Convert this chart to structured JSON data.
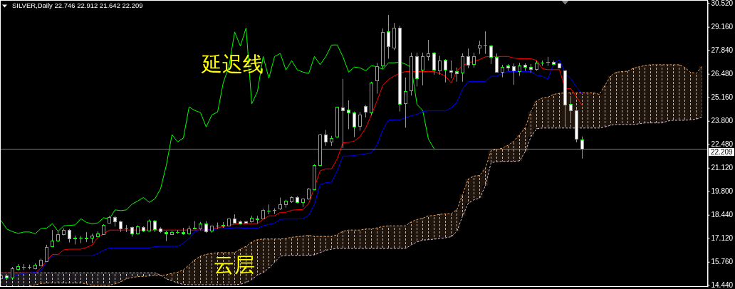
{
  "chart_data": {
    "type": "candlestick",
    "title": "SILVER,Daily 22.746 22.912 21.642 22.209",
    "categories": [
      null,
      null,
      null,
      null,
      null,
      null,
      null,
      null,
      null,
      null,
      null,
      null,
      null,
      null,
      null,
      null,
      null,
      null,
      null,
      null,
      null,
      null,
      null,
      null,
      null,
      null,
      null,
      null,
      null,
      null,
      null,
      null,
      null,
      null,
      null,
      null,
      null,
      null,
      null,
      null,
      null,
      null,
      null,
      null,
      null,
      null,
      null,
      null,
      null,
      null,
      null,
      null,
      null,
      null,
      null,
      null,
      null,
      null,
      null,
      null,
      null,
      null,
      null,
      null,
      null,
      null,
      null,
      null,
      null,
      null,
      null,
      null,
      null,
      null,
      null,
      null,
      null,
      null,
      null,
      null,
      null,
      null,
      null,
      null,
      null,
      null,
      null,
      null,
      null,
      null,
      null,
      null,
      null,
      null,
      null,
      null,
      null,
      null,
      null,
      null,
      null,
      null,
      null,
      null,
      null,
      null,
      null,
      null,
      null,
      null,
      null,
      null,
      null,
      null,
      null,
      null,
      null,
      null,
      null,
      null,
      null,
      null,
      null,
      null
    ],
    "ohlc": [
      [
        14.82,
        15.06,
        14.78,
        14.99
      ],
      [
        14.97,
        15.06,
        14.79,
        14.86
      ],
      [
        14.86,
        15.47,
        14.83,
        15.4
      ],
      [
        15.33,
        15.63,
        15.26,
        15.49
      ],
      [
        15.46,
        15.63,
        15.29,
        15.47
      ],
      [
        15.46,
        15.6,
        15.33,
        15.48
      ],
      [
        15.4,
        15.67,
        15.33,
        15.58
      ],
      [
        15.56,
        15.94,
        15.53,
        15.87
      ],
      [
        15.81,
        16.73,
        15.74,
        16.59
      ],
      [
        16.65,
        17.57,
        16.62,
        16.96
      ],
      [
        16.96,
        17.5,
        16.89,
        17.32
      ],
      [
        17.32,
        17.66,
        17.27,
        17.57
      ],
      [
        17.57,
        17.63,
        16.86,
        17.09
      ],
      [
        17.11,
        17.25,
        16.75,
        17.12
      ],
      [
        17.12,
        17.23,
        16.82,
        17.13
      ],
      [
        17.1,
        17.46,
        16.89,
        17.12
      ],
      [
        17.12,
        17.36,
        16.85,
        17.25
      ],
      [
        17.23,
        17.5,
        17.16,
        17.36
      ],
      [
        17.32,
        17.9,
        17.3,
        17.86
      ],
      [
        18.0,
        18.38,
        17.97,
        18.31
      ],
      [
        18.3,
        18.38,
        17.77,
        18.08
      ],
      [
        18.08,
        18.11,
        17.46,
        17.65
      ],
      [
        17.66,
        17.86,
        17.46,
        17.67
      ],
      [
        17.74,
        17.77,
        17.19,
        17.36
      ],
      [
        17.36,
        17.84,
        17.32,
        17.77
      ],
      [
        17.76,
        17.78,
        17.46,
        17.53
      ],
      [
        17.53,
        18.17,
        17.5,
        18.11
      ],
      [
        18.11,
        18.15,
        17.46,
        17.63
      ],
      [
        17.65,
        17.73,
        17.4,
        17.48
      ],
      [
        17.47,
        17.53,
        16.94,
        17.38
      ],
      [
        17.35,
        17.54,
        17.3,
        17.46
      ],
      [
        17.45,
        17.57,
        17.35,
        17.46
      ],
      [
        17.47,
        17.7,
        17.3,
        17.36
      ],
      [
        17.39,
        17.81,
        17.32,
        17.66
      ],
      [
        17.67,
        18.08,
        17.61,
        17.68
      ],
      [
        17.66,
        18.04,
        17.56,
        17.94
      ],
      [
        17.94,
        18.08,
        17.4,
        17.5
      ],
      [
        17.52,
        17.83,
        17.43,
        17.81
      ],
      [
        17.83,
        18.0,
        17.63,
        17.84
      ],
      [
        17.84,
        18.02,
        17.7,
        17.86
      ],
      [
        17.84,
        18.24,
        17.81,
        18.22
      ],
      [
        18.22,
        18.47,
        17.97,
        18.0
      ],
      [
        18.05,
        18.11,
        17.9,
        17.94
      ],
      [
        18.06,
        18.1,
        17.94,
        17.98
      ],
      [
        18.05,
        18.38,
        18.0,
        18.27
      ],
      [
        18.19,
        18.38,
        17.94,
        18.21
      ],
      [
        18.24,
        18.78,
        18.22,
        18.72
      ],
      [
        18.67,
        19.03,
        18.47,
        18.68
      ],
      [
        18.7,
        18.81,
        18.49,
        18.72
      ],
      [
        18.81,
        19.42,
        18.72,
        19.05
      ],
      [
        19.05,
        19.3,
        18.85,
        19.23
      ],
      [
        19.19,
        19.49,
        19.12,
        19.43
      ],
      [
        19.43,
        19.5,
        19.1,
        19.15
      ],
      [
        19.15,
        19.39,
        18.89,
        19.35
      ],
      [
        19.35,
        19.96,
        19.3,
        19.93
      ],
      [
        19.89,
        21.32,
        19.84,
        21.26
      ],
      [
        21.29,
        23.05,
        21.25,
        23.01
      ],
      [
        23.03,
        23.28,
        22.37,
        22.6
      ],
      [
        22.63,
        22.94,
        22.37,
        22.82
      ],
      [
        22.9,
        24.6,
        22.88,
        24.59
      ],
      [
        24.55,
        26.19,
        22.24,
        24.39
      ],
      [
        24.43,
        24.97,
        23.32,
        24.27
      ],
      [
        24.29,
        24.33,
        22.87,
        23.45
      ],
      [
        23.49,
        24.3,
        23.24,
        24.14
      ],
      [
        24.63,
        24.7,
        23.99,
        24.3
      ],
      [
        24.29,
        26.03,
        24.1,
        25.98
      ],
      [
        26.09,
        27.1,
        25.35,
        26.91
      ],
      [
        26.94,
        29.07,
        26.77,
        28.87
      ],
      [
        28.9,
        29.84,
        27.34,
        28.06
      ],
      [
        27.99,
        29.38,
        27.83,
        29.1
      ],
      [
        29.1,
        29.23,
        24.33,
        24.77
      ],
      [
        24.81,
        26.27,
        23.41,
        25.48
      ],
      [
        25.52,
        27.69,
        25.24,
        27.47
      ],
      [
        27.47,
        27.69,
        25.76,
        26.23
      ],
      [
        26.7,
        27.69,
        25.82,
        27.47
      ],
      [
        27.47,
        28.42,
        27.24,
        27.64
      ],
      [
        27.68,
        27.72,
        26.43,
        26.7
      ],
      [
        26.66,
        27.51,
        26.43,
        27.23
      ],
      [
        27.27,
        27.31,
        25.99,
        26.7
      ],
      [
        26.66,
        27.24,
        26.23,
        26.58
      ],
      [
        26.62,
        26.84,
        26.03,
        26.5
      ],
      [
        26.55,
        27.65,
        26.03,
        27.47
      ],
      [
        27.47,
        27.92,
        26.8,
        27.0
      ],
      [
        27.03,
        27.69,
        26.84,
        27.47
      ],
      [
        27.99,
        28.37,
        27.61,
        28.12
      ],
      [
        28.12,
        28.91,
        27.62,
        28.13
      ],
      [
        28.08,
        28.12,
        27.04,
        27.45
      ],
      [
        27.45,
        27.64,
        26.55,
        26.58
      ],
      [
        26.58,
        27.0,
        26.28,
        26.87
      ],
      [
        26.95,
        27.04,
        26.64,
        26.82
      ],
      [
        26.91,
        27.07,
        25.85,
        26.66
      ],
      [
        26.62,
        27.11,
        26.36,
        26.95
      ],
      [
        26.99,
        27.08,
        26.64,
        26.88
      ],
      [
        26.86,
        27.04,
        26.53,
        26.74
      ],
      [
        26.74,
        27.22,
        26.66,
        27.11
      ],
      [
        27.1,
        27.24,
        26.93,
        27.11
      ],
      [
        27.14,
        27.45,
        26.93,
        27.15
      ],
      [
        27.15,
        27.23,
        26.97,
        27.03
      ],
      [
        27.07,
        27.09,
        26.8,
        26.85
      ],
      [
        26.66,
        26.7,
        23.59,
        24.73
      ],
      [
        24.77,
        25.21,
        23.79,
        24.39
      ],
      [
        24.39,
        24.47,
        22.57,
        22.76
      ],
      [
        22.746,
        22.912,
        21.642,
        22.209
      ],
      null,
      null,
      null,
      null,
      null,
      null,
      null,
      null,
      null,
      null,
      null,
      null,
      null,
      null,
      null,
      null,
      null,
      null,
      null,
      null,
      null
    ],
    "color": "#00ff00",
    "colors": [
      "#000000",
      "#ffffff",
      "#000000",
      "#000000",
      "#000000",
      "#000000",
      "#000000",
      "#000000",
      "#000000",
      "#000000",
      "#000000",
      "#000000",
      "#ffffff",
      "#000000",
      "#000000",
      "#000000",
      "#000000",
      "#000000",
      "#000000",
      "#000000",
      "#ffffff",
      "#ffffff",
      "#000000",
      "#ffffff",
      "#000000",
      "#ffffff",
      "#000000",
      "#ffffff",
      "#ffffff",
      "#ffffff",
      "#000000",
      "#000000",
      "#ffffff",
      "#000000",
      "#000000",
      "#000000",
      "#ffffff",
      "#000000",
      "#000000",
      "#000000",
      "#000000",
      "#ffffff",
      "#ffffff",
      "#ffffff",
      "#000000",
      "#000000",
      "#000000",
      "#000000",
      "#000000",
      "#000000",
      "#000000",
      "#000000",
      "#ffffff",
      "#000000",
      "#000000",
      "#000000",
      "#000000",
      "#ffffff",
      "#000000",
      "#000000",
      "#ffffff",
      "#ffffff",
      "#ffffff",
      "#000000",
      "#ffffff",
      "#000000",
      "#000000",
      "#000000",
      "#ffffff",
      "#000000",
      "#ffffff",
      "#000000",
      "#000000",
      "#ffffff",
      "#000000",
      "#000000",
      "#ffffff",
      "#000000",
      "#ffffff",
      "#ffffff",
      "#ffffff",
      "#000000",
      "#ffffff",
      "#000000",
      "#000000",
      "#000000",
      "#ffffff",
      "#ffffff",
      "#000000",
      "#ffffff",
      "#ffffff",
      "#000000",
      "#ffffff",
      "#ffffff",
      "#000000",
      "#000000",
      "#000000",
      "#ffffff",
      "#ffffff",
      "#ffffff",
      "#ffffff",
      "#ffffff",
      "#ffffff",
      null,
      null,
      null,
      null,
      null,
      null,
      null,
      null,
      null,
      null,
      null,
      null,
      null,
      null,
      null,
      null,
      null,
      null,
      null,
      null,
      null
    ],
    "series": [
      {
        "type": "line",
        "color": "#d8bfd8",
        "line_style": "dotted",
        "values": [
          15.13,
          15.13,
          15.13,
          15.13,
          15.13,
          15.13,
          15.13,
          15.13,
          15.13,
          15.13,
          15.13,
          15.13,
          15.13,
          15.13,
          15.13,
          15.13,
          15.13,
          15.13,
          15.13,
          15.13,
          15.13,
          15.13,
          15.13,
          15.13,
          15.13,
          15.13,
          15.13,
          15.13,
          15.0,
          14.79,
          14.68,
          14.55,
          14.47,
          14.45,
          14.45,
          14.45,
          14.45,
          14.45,
          14.45,
          14.45,
          14.45,
          14.45,
          14.48,
          14.58,
          14.75,
          15.0,
          15.15,
          15.4,
          15.74,
          16.08,
          16.12,
          16.13,
          16.13,
          16.13,
          16.13,
          16.16,
          16.28,
          16.42,
          16.48,
          16.52,
          16.52,
          16.52,
          16.52,
          16.52,
          16.52,
          16.52,
          16.52,
          16.52,
          16.52,
          16.52,
          16.52,
          16.52,
          16.73,
          16.89,
          17.0,
          17.02,
          17.05,
          17.09,
          17.13,
          17.19,
          17.5,
          18.38,
          19.1,
          19.3,
          19.39,
          20.1,
          21.42,
          21.46,
          21.49,
          21.49,
          21.49,
          21.52,
          22.05,
          22.9,
          23.35,
          23.39,
          23.39,
          23.39,
          23.39,
          23.39,
          23.39,
          23.39,
          23.39,
          23.39,
          23.39,
          23.39,
          23.45,
          23.55,
          23.59,
          23.59,
          23.59,
          23.59,
          23.63,
          23.68,
          23.68,
          23.68,
          23.68,
          23.79,
          23.83,
          23.83,
          23.83,
          23.86,
          23.9,
          24.0
        ],
        "lower": [
          14.34,
          14.34,
          14.34,
          14.34,
          14.34,
          14.38,
          14.45,
          14.52,
          14.55,
          14.55,
          14.55,
          14.55,
          14.55,
          14.55,
          14.55,
          14.5,
          14.42,
          14.42,
          14.42,
          14.42,
          14.5,
          14.62,
          14.8,
          14.86,
          14.92,
          14.93,
          14.95,
          14.99,
          14.97,
          null,
          null,
          null,
          null,
          null,
          null,
          null,
          null,
          null,
          null,
          null,
          null,
          null,
          null,
          null,
          null,
          null,
          null,
          null,
          null,
          null,
          null,
          null,
          null,
          null,
          null,
          null,
          null,
          null,
          null,
          null,
          null,
          null,
          null,
          null,
          null,
          null,
          null,
          null,
          null,
          null,
          null,
          null,
          null,
          null,
          null,
          null,
          null,
          null,
          null,
          null,
          null,
          null,
          null,
          null,
          null,
          null,
          null,
          null,
          null,
          null,
          null,
          null,
          null,
          null,
          null,
          null,
          null,
          null,
          null,
          null,
          null,
          null,
          null,
          null,
          null,
          null,
          null,
          null,
          null,
          null,
          null,
          null,
          null,
          null,
          null,
          null,
          null,
          null,
          null,
          null,
          null,
          null,
          null,
          null
        ],
        "upper": [
          15.13,
          15.13,
          15.13,
          15.13,
          15.13,
          15.13,
          15.13,
          15.13,
          15.13,
          15.13,
          15.13,
          15.13,
          15.13,
          15.13,
          15.13,
          15.13,
          15.13,
          15.13,
          15.13,
          15.13,
          15.13,
          15.13,
          15.13,
          15.13,
          15.13,
          15.13,
          15.13,
          15.13,
          15.0,
          null,
          null,
          null,
          null,
          null,
          null,
          null,
          null,
          null,
          null,
          null,
          null,
          null,
          null,
          null,
          null,
          null,
          null,
          null,
          null,
          null,
          null,
          null,
          null,
          null,
          null,
          null,
          null,
          null,
          null,
          null,
          null,
          null,
          null,
          null,
          null,
          null,
          null,
          null,
          null,
          null,
          null,
          null,
          null,
          null,
          null,
          null,
          null,
          null,
          null,
          null,
          null,
          null,
          null,
          null,
          null,
          null,
          null,
          null,
          null,
          null,
          null,
          null,
          null,
          null,
          null,
          null,
          null,
          null,
          null,
          null,
          null,
          null,
          null,
          null,
          null,
          null,
          null,
          null,
          null,
          null,
          null,
          null,
          null,
          null,
          null,
          null,
          null,
          null,
          null,
          null,
          null,
          null,
          null,
          null
        ]
      },
      {
        "type": "line",
        "color": "#f4a460",
        "line_style": "dotted",
        "values": [
          null,
          null,
          null,
          null,
          null,
          14.38,
          14.45,
          14.52,
          14.55,
          14.55,
          14.55,
          14.55,
          14.55,
          14.55,
          14.55,
          14.5,
          14.42,
          14.42,
          14.42,
          14.42,
          14.5,
          14.62,
          14.8,
          14.86,
          14.92,
          14.93,
          14.95,
          14.99,
          14.97,
          15.02,
          15.1,
          15.16,
          15.3,
          15.56,
          15.87,
          16.08,
          16.18,
          16.24,
          16.28,
          16.28,
          16.28,
          16.28,
          16.48,
          16.64,
          16.89,
          17.02,
          17.06,
          17.06,
          17.06,
          17.06,
          17.09,
          17.16,
          17.19,
          17.23,
          17.27,
          17.21,
          17.21,
          17.21,
          17.21,
          17.3,
          17.5,
          17.57,
          17.57,
          17.57,
          17.63,
          17.63,
          17.7,
          17.77,
          17.81,
          17.81,
          17.81,
          17.81,
          18.04,
          18.17,
          18.24,
          18.38,
          18.4,
          18.47,
          18.49,
          18.5,
          18.72,
          19.59,
          20.48,
          20.65,
          20.68,
          21.09,
          22.1,
          22.17,
          22.24,
          22.41,
          22.64,
          23.01,
          23.41,
          24.33,
          24.94,
          25.1,
          25.15,
          25.31,
          25.37,
          25.39,
          25.39,
          25.39,
          25.39,
          25.39,
          25.39,
          25.31,
          25.82,
          26.36,
          26.57,
          26.61,
          26.63,
          26.8,
          26.88,
          26.95,
          27.0,
          27.0,
          27.0,
          27.0,
          27.0,
          27.0,
          26.84,
          26.57,
          26.5,
          26.9
        ],
        "lower": [
          null,
          null,
          null,
          null,
          null,
          null,
          null,
          null,
          null,
          null,
          null,
          null,
          null,
          null,
          null,
          null,
          null,
          null,
          null,
          null,
          null,
          null,
          null,
          null,
          null,
          null,
          null,
          null,
          null,
          14.79,
          14.68,
          14.55,
          14.47,
          14.45,
          14.45,
          14.45,
          14.45,
          14.45,
          14.45,
          14.45,
          14.45,
          14.45,
          14.48,
          14.58,
          14.75,
          15.0,
          15.15,
          15.4,
          15.74,
          16.08,
          16.12,
          16.13,
          16.13,
          16.13,
          16.13,
          16.16,
          16.28,
          16.42,
          16.48,
          16.52,
          16.52,
          16.52,
          16.52,
          16.52,
          16.52,
          16.52,
          16.52,
          16.52,
          16.52,
          16.52,
          16.52,
          16.52,
          16.73,
          16.89,
          17.0,
          17.02,
          17.05,
          17.09,
          17.13,
          17.19,
          17.5,
          18.38,
          19.1,
          19.3,
          19.39,
          20.1,
          21.42,
          21.46,
          21.49,
          21.49,
          21.49,
          21.52,
          22.05,
          22.9,
          23.35,
          23.39,
          23.39,
          23.39,
          23.39,
          23.39,
          23.39,
          23.39,
          23.39,
          23.39,
          23.39,
          23.39,
          23.45,
          23.55,
          23.59,
          23.59,
          23.59,
          23.59,
          23.63,
          23.68,
          23.68,
          23.68,
          23.68,
          23.79,
          23.83,
          23.83,
          23.83,
          23.86,
          23.9,
          24.0
        ],
        "upper": [
          null,
          null,
          null,
          null,
          null,
          null,
          null,
          null,
          null,
          null,
          null,
          null,
          null,
          null,
          null,
          null,
          null,
          null,
          null,
          null,
          null,
          null,
          null,
          null,
          null,
          null,
          null,
          null,
          null,
          15.02,
          15.1,
          15.16,
          15.3,
          15.56,
          15.87,
          16.08,
          16.18,
          16.24,
          16.28,
          16.28,
          16.28,
          16.28,
          16.48,
          16.64,
          16.89,
          17.02,
          17.06,
          17.06,
          17.06,
          17.06,
          17.09,
          17.16,
          17.19,
          17.23,
          17.27,
          17.21,
          17.21,
          17.21,
          17.21,
          17.3,
          17.5,
          17.57,
          17.57,
          17.57,
          17.63,
          17.63,
          17.7,
          17.77,
          17.81,
          17.81,
          17.81,
          17.81,
          18.04,
          18.17,
          18.24,
          18.38,
          18.4,
          18.47,
          18.49,
          18.5,
          18.72,
          19.59,
          20.48,
          20.65,
          20.68,
          21.09,
          22.1,
          22.17,
          22.24,
          22.41,
          22.64,
          23.01,
          23.41,
          24.33,
          24.94,
          25.1,
          25.15,
          25.31,
          25.37,
          25.39,
          25.39,
          25.39,
          25.39,
          25.39,
          25.39,
          25.31,
          25.82,
          26.36,
          26.57,
          26.61,
          26.63,
          26.8,
          26.88,
          26.95,
          27.0,
          27.0,
          27.0,
          27.0,
          27.0,
          27.0,
          26.84,
          26.57,
          26.5,
          26.9
        ]
      },
      {
        "type": "line",
        "color": "#00ff00",
        "values": [
          18.11,
          17.63,
          17.48,
          17.38,
          17.46,
          17.46,
          17.36,
          17.66,
          17.68,
          17.94,
          17.5,
          17.81,
          17.84,
          17.86,
          18.22,
          18.0,
          17.94,
          17.98,
          18.27,
          18.21,
          18.72,
          18.68,
          18.72,
          19.05,
          19.23,
          19.43,
          19.15,
          19.35,
          19.93,
          21.26,
          23.01,
          22.6,
          22.82,
          24.59,
          24.39,
          24.27,
          23.45,
          24.14,
          24.3,
          25.98,
          26.91,
          28.87,
          28.06,
          29.1,
          24.77,
          25.48,
          27.47,
          26.23,
          27.47,
          27.64,
          26.7,
          27.23,
          26.7,
          26.58,
          26.5,
          27.47,
          27.0,
          27.47,
          28.12,
          28.13,
          27.45,
          26.58,
          26.87,
          26.82,
          26.66,
          26.95,
          26.88,
          26.74,
          27.11,
          27.11,
          27.15,
          27.03,
          26.85,
          24.73,
          24.39,
          22.76,
          22.21,
          null,
          null,
          null,
          null,
          null,
          null,
          null,
          null,
          null,
          null,
          null,
          null,
          null,
          null,
          null,
          null,
          null,
          null,
          null,
          null,
          null,
          null,
          null,
          null,
          null,
          null,
          null,
          null,
          null,
          null,
          null,
          null,
          null,
          null,
          null,
          null,
          null,
          null,
          null,
          null,
          null,
          null,
          null,
          null,
          null,
          null,
          null
        ]
      },
      {
        "type": "line",
        "color": "#ff0000",
        "values": [
          15.13,
          15.13,
          15.13,
          15.13,
          15.13,
          15.13,
          15.13,
          15.4,
          15.83,
          16.18,
          16.18,
          16.44,
          16.48,
          16.48,
          16.48,
          16.58,
          16.73,
          17.16,
          17.36,
          17.57,
          17.57,
          17.57,
          17.57,
          17.57,
          17.57,
          17.57,
          17.57,
          17.57,
          17.57,
          17.57,
          17.57,
          17.57,
          17.57,
          17.57,
          17.57,
          17.57,
          17.57,
          17.61,
          17.7,
          17.77,
          17.84,
          17.9,
          17.94,
          17.94,
          17.94,
          17.94,
          18.18,
          18.38,
          18.38,
          18.58,
          18.58,
          18.7,
          18.73,
          18.74,
          19.08,
          20.0,
          20.95,
          21.06,
          21.06,
          21.63,
          22.55,
          22.57,
          22.64,
          22.91,
          23.39,
          24.15,
          24.95,
          25.82,
          26.16,
          26.36,
          26.53,
          26.61,
          26.61,
          26.61,
          26.61,
          26.61,
          26.61,
          26.5,
          26.35,
          25.95,
          26.65,
          26.95,
          27.1,
          27.2,
          27.3,
          27.45,
          27.47,
          27.47,
          27.47,
          27.47,
          27.38,
          27.34,
          27.34,
          27.34,
          27.25,
          26.77,
          26.72,
          26.72,
          26.72,
          25.64,
          25.64,
          25.16,
          24.67,
          null,
          null,
          null,
          null,
          null,
          null,
          null,
          null,
          null,
          null,
          null,
          null,
          null,
          null,
          null,
          null,
          null,
          null,
          null,
          null,
          null
        ]
      },
      {
        "type": "line",
        "color": "#0000ff",
        "values": [
          14.79,
          14.83,
          14.93,
          15.03,
          15.1,
          15.13,
          15.16,
          15.26,
          15.74,
          16.08,
          16.1,
          16.1,
          16.1,
          16.1,
          16.1,
          16.1,
          16.1,
          16.24,
          16.42,
          16.55,
          16.55,
          16.55,
          16.55,
          16.55,
          16.55,
          16.55,
          16.55,
          16.62,
          16.64,
          16.64,
          16.64,
          16.64,
          16.82,
          17.09,
          17.5,
          17.57,
          17.57,
          17.59,
          17.63,
          17.66,
          17.67,
          17.7,
          17.7,
          17.67,
          17.67,
          17.67,
          17.81,
          17.89,
          17.97,
          18.18,
          18.2,
          18.2,
          18.2,
          18.22,
          18.41,
          19.05,
          20.16,
          20.27,
          20.3,
          20.95,
          21.79,
          21.79,
          21.82,
          21.87,
          21.92,
          21.98,
          22.44,
          23.3,
          23.84,
          23.86,
          23.86,
          23.98,
          24.09,
          24.17,
          24.33,
          24.37,
          24.37,
          24.37,
          24.37,
          24.54,
          24.87,
          25.62,
          26.04,
          26.04,
          26.04,
          26.04,
          26.34,
          26.34,
          26.53,
          26.61,
          26.61,
          26.61,
          26.61,
          26.61,
          26.4,
          26.34,
          26.18,
          27.1,
          27.28,
          26.5,
          26.2,
          25.72,
          25.35,
          null,
          null,
          null,
          null,
          null,
          null,
          null,
          null,
          null,
          null,
          null,
          null,
          null,
          null,
          null,
          null,
          null,
          null,
          null,
          null,
          null
        ]
      }
    ],
    "ylim": [
      14.33,
      30.65
    ],
    "yticks": [
      {
        "value": 30.52,
        "label": "30.520"
      },
      {
        "value": 29.16,
        "label": "29.160"
      },
      {
        "value": 27.84,
        "label": "27.840"
      },
      {
        "value": 26.48,
        "label": "26.480"
      },
      {
        "value": 25.16,
        "label": "25.160"
      },
      {
        "value": 23.8,
        "label": "23.800"
      },
      {
        "value": 22.48,
        "label": "22.480"
      },
      {
        "value": 21.12,
        "label": "21.120"
      },
      {
        "value": 19.8,
        "label": "19.800"
      },
      {
        "value": 18.44,
        "label": "18.440"
      },
      {
        "value": 17.12,
        "label": "17.120"
      },
      {
        "value": 15.76,
        "label": "15.760"
      },
      {
        "value": 14.44,
        "label": "14.440"
      }
    ],
    "tick_labels": "y",
    "ref_lines": [
      {
        "axis": "y",
        "value": 22.209,
        "label": "22.209",
        "color": "#778899"
      }
    ],
    "annotations": [
      "延迟线",
      "云层"
    ]
  }
}
